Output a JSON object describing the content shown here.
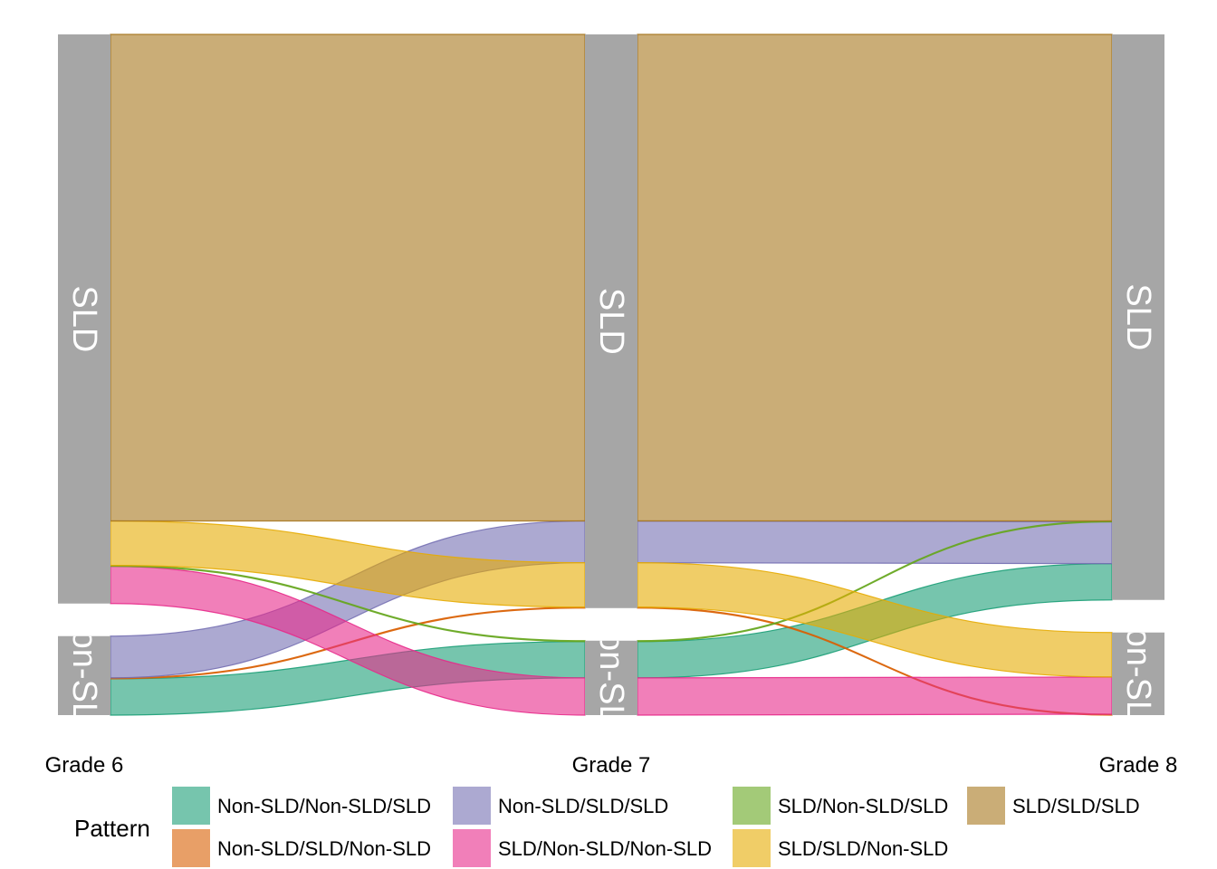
{
  "chart_data": {
    "type": "alluvial",
    "axes": [
      "Grade 6",
      "Grade 7",
      "Grade 8"
    ],
    "strata": [
      "SLD",
      "Non-SLD"
    ],
    "legend_title": "Pattern",
    "flows": [
      {
        "pattern": "Non-SLD/Non-SLD/SLD",
        "path": [
          "Non-SLD",
          "Non-SLD",
          "SLD"
        ],
        "value": 40,
        "color": "#1B9E77"
      },
      {
        "pattern": "Non-SLD/SLD/Non-SLD",
        "path": [
          "Non-SLD",
          "SLD",
          "Non-SLD"
        ],
        "value": 1,
        "color": "#D95F02"
      },
      {
        "pattern": "Non-SLD/SLD/SLD",
        "path": [
          "Non-SLD",
          "SLD",
          "SLD"
        ],
        "value": 46,
        "color": "#7570B3"
      },
      {
        "pattern": "SLD/Non-SLD/Non-SLD",
        "path": [
          "SLD",
          "Non-SLD",
          "Non-SLD"
        ],
        "value": 41,
        "color": "#E7298A"
      },
      {
        "pattern": "SLD/Non-SLD/SLD",
        "path": [
          "SLD",
          "Non-SLD",
          "SLD"
        ],
        "value": 1,
        "color": "#66A61E"
      },
      {
        "pattern": "SLD/SLD/Non-SLD",
        "path": [
          "SLD",
          "SLD",
          "Non-SLD"
        ],
        "value": 49,
        "color": "#E6AB02"
      },
      {
        "pattern": "SLD/SLD/SLD",
        "path": [
          "SLD",
          "SLD",
          "SLD"
        ],
        "value": 536,
        "color": "#A6761D"
      }
    ],
    "legend_order": [
      "Non-SLD/Non-SLD/SLD",
      "Non-SLD/SLD/Non-SLD",
      "Non-SLD/SLD/SLD",
      "SLD/Non-SLD/Non-SLD",
      "SLD/Non-SLD/SLD",
      "SLD/SLD/Non-SLD",
      "SLD/SLD/SLD"
    ],
    "stratum_color": "#A6A6A6",
    "flow_opacity": 0.6,
    "legend_position": "bottom"
  }
}
